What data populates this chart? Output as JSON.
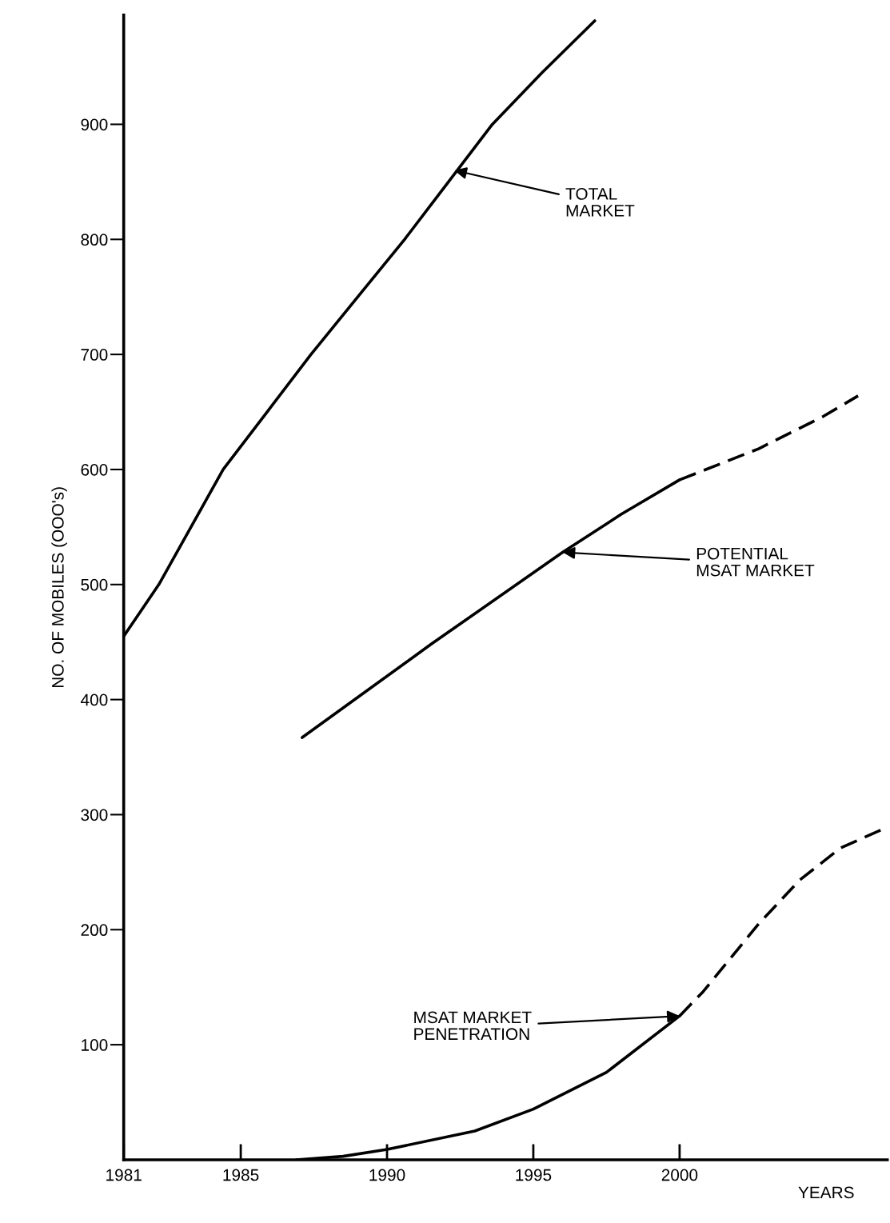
{
  "chart_data": {
    "type": "line",
    "xlabel": "YEARS",
    "ylabel": "NO. OF MOBILES (OOO's)",
    "xlim": [
      1981,
      2007.1
    ],
    "ylim": [
      0,
      995
    ],
    "xticks": [
      1981,
      1985,
      1990,
      1995,
      2000
    ],
    "yticks": [
      100,
      200,
      300,
      400,
      500,
      600,
      700,
      800,
      900
    ],
    "grid": false,
    "legend": false,
    "marker": "none",
    "series": [
      {
        "color": "#000000",
        "line_style": "solid",
        "x": [
          1981,
          1982.2,
          1983.3,
          1984.4,
          1985.9,
          1987.4,
          1989.0,
          1990.6,
          1992.1,
          1993.6,
          1995.3,
          1997.1
        ],
        "values": [
          455,
          500,
          550,
          600,
          650,
          700,
          750,
          800,
          850,
          900,
          945,
          990
        ]
      },
      {
        "color": "#000000",
        "line_style": "solid",
        "x": [
          1987.1,
          1991.5,
          1996.0,
          1998.0,
          2000.0
        ],
        "values": [
          367,
          448,
          528,
          561,
          591
        ]
      },
      {
        "color": "#000000",
        "line_style": "dashed",
        "x": [
          2000.0,
          2002.7,
          2004.9,
          2006.1
        ],
        "values": [
          591,
          618,
          646,
          664
        ]
      },
      {
        "color": "#000000",
        "line_style": "solid",
        "x": [
          1986.9,
          1988.5,
          1990,
          1993,
          1995,
          1997.5,
          2000
        ],
        "values": [
          0,
          3,
          9,
          25,
          44,
          76,
          125
        ]
      },
      {
        "color": "#000000",
        "line_style": "dashed",
        "x": [
          2000,
          2000.8,
          2002.7,
          2004.1,
          2005.5,
          2007.0
        ],
        "values": [
          125,
          146,
          205,
          243,
          271,
          288
        ]
      }
    ],
    "annotations": [
      {
        "text": "TOTAL\nMARKET",
        "x": 1992.3,
        "y": 860
      },
      {
        "text": "POTENTIAL\nMSAT MARKET",
        "x": 1996.0,
        "y": 528
      },
      {
        "text": "MSAT MARKET\nPENETRATION",
        "x": 2000,
        "y": 125
      }
    ]
  }
}
